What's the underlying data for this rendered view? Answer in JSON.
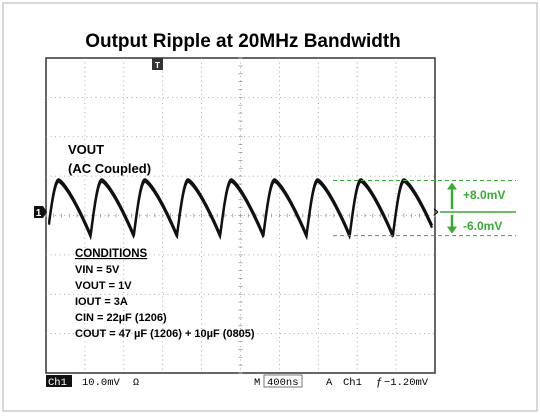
{
  "chart_data": {
    "type": "line",
    "title": "Output Ripple at 20MHz Bandwidth",
    "annotation_signal": [
      "VOUT",
      "(AC Coupled)"
    ],
    "conditions_heading": "CONDITIONS",
    "conditions": [
      "VIN = 5V",
      "VOUT = 1V",
      "IOUT = 3A",
      "CIN = 22µF (1206)",
      "COUT = 47 µF (1206) + 10µF (0805)"
    ],
    "ripple_labels": {
      "positive": "+8.0mV",
      "negative": "-6.0mV"
    },
    "ripple_levels_mV": {
      "positive": 8.0,
      "negative": -6.0
    },
    "grid": true,
    "grid_divisions": {
      "x": 10,
      "y": 8
    },
    "x_scale_ns_per_div": 400,
    "y_scale_mV_per_div": 10.0,
    "waveform": {
      "name": "Ch1",
      "period_ns": 444,
      "first_peak_ns": 130,
      "peak_mV": 8.0,
      "trough_mV": -6.0,
      "shape": "sawtooth-ripple"
    },
    "status_bar": {
      "channel": "Ch1",
      "volts_per_div": "10.0mV",
      "coupling_symbol": "Ω",
      "time_label": "M",
      "time_per_div": "400ns",
      "trigger_mode": "A",
      "trigger_channel": "Ch1",
      "trigger_symbol": "ƒ",
      "trigger_level": "−1.20mV"
    },
    "channel_marker": "1",
    "colors": {
      "trace": "#111111",
      "annotation": "#3aa935",
      "grid": "#9a9a9a",
      "frame": "#333333"
    }
  }
}
